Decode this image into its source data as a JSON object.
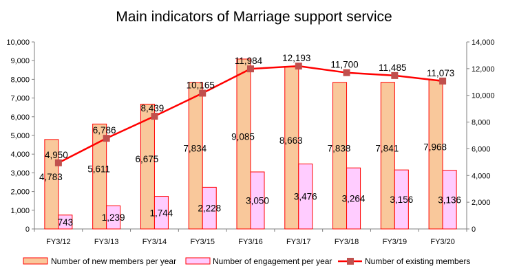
{
  "chart_data": {
    "type": "bar",
    "title": "Main indicators of Marriage support service",
    "categories": [
      "FY3/12",
      "FY3/13",
      "FY3/14",
      "FY3/15",
      "FY3/16",
      "FY3/17",
      "FY3/18",
      "FY3/19",
      "FY3/20"
    ],
    "left_axis": {
      "min": 0,
      "max": 10000,
      "step": 1000,
      "tick_labels": [
        "0",
        "1,000",
        "2,000",
        "3,000",
        "4,000",
        "5,000",
        "6,000",
        "7,000",
        "8,000",
        "9,000",
        "10,000"
      ]
    },
    "right_axis": {
      "min": 0,
      "max": 14000,
      "step": 2000,
      "tick_labels": [
        "0",
        "2,000",
        "4,000",
        "6,000",
        "8,000",
        "10,000",
        "12,000",
        "14,000"
      ]
    },
    "grid": false,
    "legend_position": "bottom",
    "series": [
      {
        "name": "Number of new members per year",
        "type": "bar",
        "axis": "left",
        "color": "#F9C89B",
        "border": "#FF0000",
        "values": [
          4783,
          5611,
          6675,
          7834,
          9085,
          8663,
          7838,
          7841,
          7968
        ],
        "labels": [
          "4,783",
          "5,611",
          "6,675",
          "7,834",
          "9,085",
          "8,663",
          "7,838",
          "7,841",
          "7,968"
        ]
      },
      {
        "name": "Number of engagement per year",
        "type": "bar",
        "axis": "left",
        "color": "#FFCCFF",
        "border": "#FF0000",
        "values": [
          743,
          1239,
          1744,
          2228,
          3050,
          3476,
          3264,
          3156,
          3136
        ],
        "labels": [
          "743",
          "1,239",
          "1,744",
          "2,228",
          "3,050",
          "3,476",
          "3,264",
          "3,156",
          "3,136"
        ]
      },
      {
        "name": "Number of existing members",
        "type": "line",
        "axis": "right",
        "color": "#FF0000",
        "marker_color": "#C0504D",
        "values": [
          4950,
          6786,
          8439,
          10165,
          11984,
          12193,
          11700,
          11485,
          11073
        ],
        "labels": [
          "4,950",
          "6,786",
          "8,439",
          "10,165",
          "11,984",
          "12,193",
          "11,700",
          "11,485",
          "11,073"
        ]
      }
    ]
  }
}
